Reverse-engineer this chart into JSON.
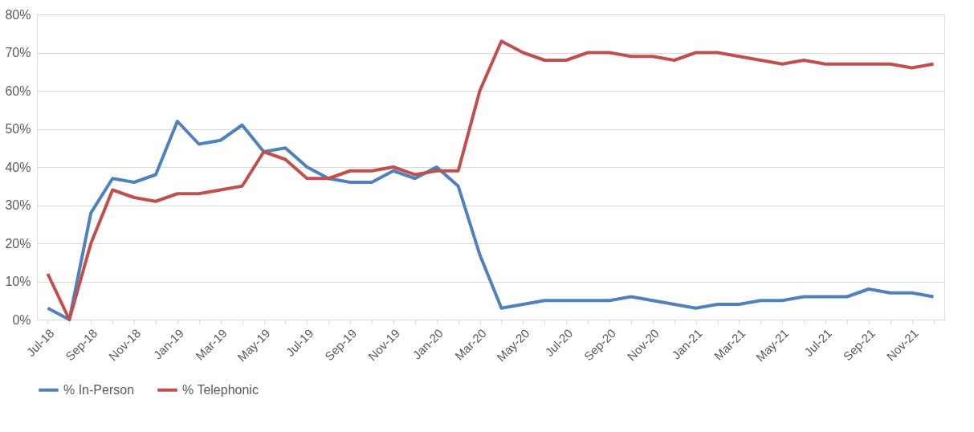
{
  "chart_data": {
    "type": "line",
    "categories": [
      "Jul-18",
      null,
      "Sep-18",
      null,
      "Nov-18",
      null,
      "Jan-19",
      null,
      "Mar-19",
      null,
      "May-19",
      null,
      "Jul-19",
      null,
      "Sep-19",
      null,
      "Nov-19",
      null,
      "Jan-20",
      null,
      "Mar-20",
      null,
      "May-20",
      null,
      "Jul-20",
      null,
      "Sep-20",
      null,
      "Nov-20",
      null,
      "Jan-21",
      null,
      "Mar-21",
      null,
      "May-21",
      null,
      "Jul-21",
      null,
      "Sep-21",
      null,
      "Nov-21",
      null
    ],
    "series": [
      {
        "name": "% In-Person",
        "color": "#4f81bd",
        "values": [
          3,
          0,
          28,
          37,
          36,
          38,
          52,
          46,
          47,
          51,
          44,
          45,
          40,
          37,
          36,
          36,
          39,
          37,
          40,
          35,
          17,
          3,
          4,
          5,
          5,
          5,
          5,
          6,
          5,
          4,
          3,
          4,
          4,
          5,
          5,
          6,
          6,
          6,
          8,
          7,
          7,
          6
        ]
      },
      {
        "name": "% Telephonic",
        "color": "#c0504d",
        "values": [
          12,
          0,
          20,
          34,
          32,
          31,
          33,
          33,
          34,
          35,
          44,
          42,
          37,
          37,
          39,
          39,
          40,
          38,
          39,
          39,
          60,
          73,
          70,
          68,
          68,
          70,
          70,
          69,
          69,
          68,
          70,
          70,
          69,
          68,
          67,
          68,
          67,
          67,
          67,
          67,
          66,
          67
        ]
      }
    ],
    "ylim": [
      0,
      80
    ],
    "yticks": [
      {
        "value": 0,
        "label": "0%"
      },
      {
        "value": 10,
        "label": "10%"
      },
      {
        "value": 20,
        "label": "20%"
      },
      {
        "value": 30,
        "label": "30%"
      },
      {
        "value": 40,
        "label": "40%"
      },
      {
        "value": 50,
        "label": "50%"
      },
      {
        "value": 60,
        "label": "60%"
      },
      {
        "value": 70,
        "label": "70%"
      },
      {
        "value": 80,
        "label": "80%"
      }
    ],
    "grid": "y",
    "legend": "bottom",
    "marker": "none",
    "line_style": "solid"
  }
}
